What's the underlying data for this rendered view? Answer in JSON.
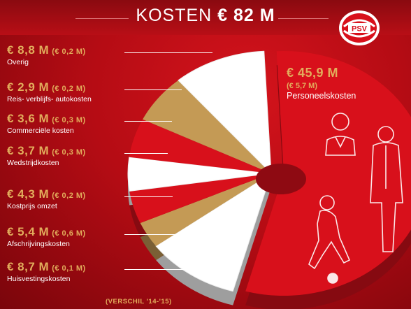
{
  "header": {
    "title_word": "KOSTEN",
    "title_amount": "€ 82 M",
    "logo_text": "PSV"
  },
  "footnote": "(VERSCHIL '14-'15)",
  "chart_data": {
    "type": "pie",
    "title": "KOSTEN € 82 M",
    "unit": "€ M",
    "slices": [
      {
        "label": "Personeelskosten",
        "value": 45.9,
        "amount": "€ 45,9 M",
        "diff": "(€ 5,7 M)",
        "color": "#d8101b"
      },
      {
        "label": "Overig",
        "value": 8.8,
        "amount": "€ 8,8 M",
        "diff": "(€ 0,2 M)",
        "color": "#ffffff"
      },
      {
        "label": "Reis- verblijfs- autokosten",
        "value": 2.9,
        "amount": "€ 2,9 M",
        "diff": "(€ 0,2 M)",
        "color": "#c49a55"
      },
      {
        "label": "Commerciële kosten",
        "value": 3.6,
        "amount": "€ 3,6 M",
        "diff": "(€ 0,3 M)",
        "color": "#d8101b"
      },
      {
        "label": "Wedstrijdkosten",
        "value": 3.7,
        "amount": "€ 3,7 M",
        "diff": "(€ 0,3 M)",
        "color": "#ffffff"
      },
      {
        "label": "Kostprijs omzet",
        "value": 4.3,
        "amount": "€ 4,3 M",
        "diff": "(€ 0,2 M)",
        "color": "#d8101b"
      },
      {
        "label": "Afschrijvingskosten",
        "value": 5.4,
        "amount": "€ 5,4 M",
        "diff": "(€ 0,6 M)",
        "color": "#c49a55"
      },
      {
        "label": "Huisvestingskosten",
        "value": 8.7,
        "amount": "€ 8,7 M",
        "diff": "(€ 0,1 M)",
        "color": "#ffffff"
      }
    ]
  }
}
